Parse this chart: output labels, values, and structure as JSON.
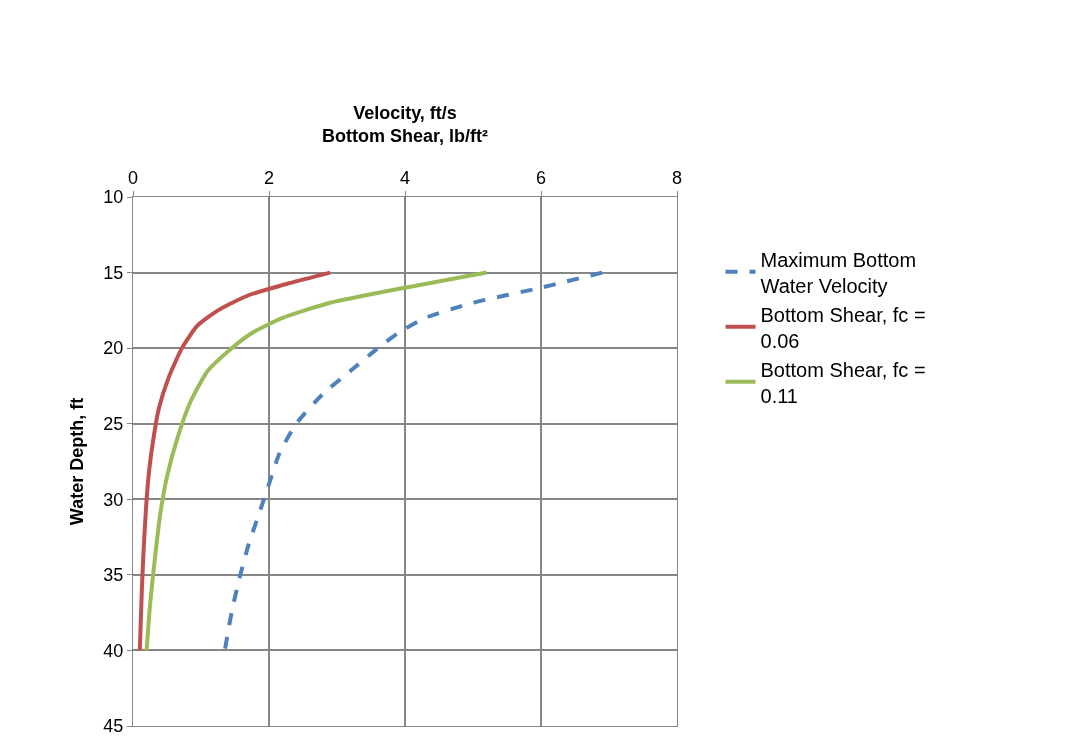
{
  "chart_data": {
    "type": "line",
    "xlabel": "Velocity, ft/s\nBottom Shear, lb/ft²",
    "ylabel": "Water Depth, ft",
    "xlim": [
      0,
      8
    ],
    "xticks": [
      0,
      2,
      4,
      6,
      8
    ],
    "ylim": [
      45,
      10
    ],
    "yticks": [
      10,
      15,
      20,
      25,
      30,
      35,
      40,
      45
    ],
    "grid": true,
    "legend": "right",
    "series": [
      {
        "name": "Maximum Bottom Water Velocity",
        "color": "#4f81bd",
        "line_style": "dashed",
        "x": [
          6.9,
          6.0,
          5.0,
          4.3,
          3.9,
          3.6,
          3.2,
          2.8,
          2.4,
          2.15,
          2.0,
          1.85,
          1.7,
          1.55,
          1.45,
          1.35
        ],
        "values": [
          15,
          16,
          17,
          18,
          19,
          20,
          21.5,
          23,
          25,
          27,
          29,
          31,
          33,
          35.5,
          37.5,
          40
        ]
      },
      {
        "name": "Bottom Shear, fc = 0.06",
        "color": "#c0504d",
        "line_style": "solid",
        "x": [
          2.9,
          2.3,
          1.7,
          1.25,
          0.95,
          0.72,
          0.52,
          0.38,
          0.3,
          0.24,
          0.2,
          0.16,
          0.13,
          0.1
        ],
        "values": [
          15,
          15.7,
          16.5,
          17.5,
          18.5,
          20,
          22,
          24,
          26,
          28,
          30,
          33,
          36,
          40
        ]
      },
      {
        "name": "Bottom Shear, fc = 0.11",
        "color": "#9bbb59",
        "line_style": "solid",
        "x": [
          5.2,
          4.0,
          2.9,
          2.2,
          1.75,
          1.4,
          1.1,
          0.85,
          0.65,
          0.5,
          0.4,
          0.32,
          0.25,
          0.2
        ],
        "values": [
          15,
          16,
          17,
          18,
          19,
          20.2,
          21.5,
          23.5,
          26,
          28.5,
          31,
          34,
          37,
          40
        ]
      }
    ]
  }
}
